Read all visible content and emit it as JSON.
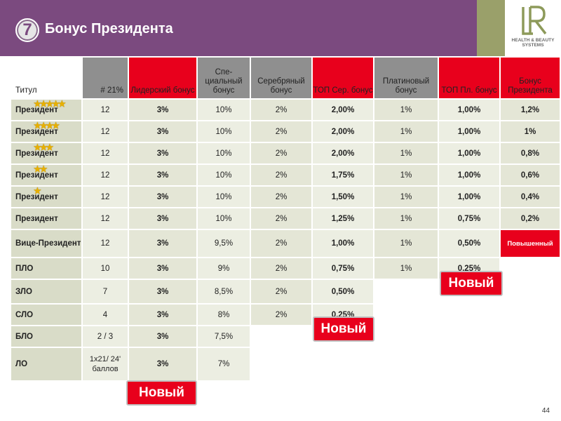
{
  "header": {
    "number": "7",
    "title": "Бонус Президента",
    "logo_letters": "LR",
    "logo_tagline_1": "HEALTH & BEAUTY",
    "logo_tagline_2": "SYSTEMS",
    "colors": {
      "header_bg": "#7b4a7f",
      "accent_red": "#e8001c",
      "header_gray": "#8f8f8f"
    }
  },
  "table": {
    "headers": [
      "Титул",
      "# 21%",
      "Лидерский бонус",
      "Спе-циальный бонус",
      "Серебряный бонус",
      "ТОП Сер. бонус",
      "Платиновый бонус",
      "ТОП Пл. бонус",
      "Бонус Президента"
    ],
    "rows": [
      {
        "title": "Президент",
        "stars": "★★★★★",
        "cells": [
          "12",
          "3%",
          "10%",
          "2%",
          "2,00%",
          "1%",
          "1,00%",
          "1,2%"
        ]
      },
      {
        "title": "Президент",
        "stars": "★★★★",
        "cells": [
          "12",
          "3%",
          "10%",
          "2%",
          "2,00%",
          "1%",
          "1,00%",
          "1%"
        ]
      },
      {
        "title": "Президент",
        "stars": "★★★",
        "cells": [
          "12",
          "3%",
          "10%",
          "2%",
          "2,00%",
          "1%",
          "1,00%",
          "0,8%"
        ]
      },
      {
        "title": "Президент",
        "stars": "★★",
        "cells": [
          "12",
          "3%",
          "10%",
          "2%",
          "1,75%",
          "1%",
          "1,00%",
          "0,6%"
        ]
      },
      {
        "title": "Президент",
        "stars": "★",
        "cells": [
          "12",
          "3%",
          "10%",
          "2%",
          "1,50%",
          "1%",
          "1,00%",
          "0,4%"
        ]
      },
      {
        "title": "Президент",
        "stars": "",
        "cells": [
          "12",
          "3%",
          "10%",
          "2%",
          "1,25%",
          "1%",
          "0,75%",
          "0,2%"
        ]
      },
      {
        "title": "Вице-Президент",
        "stars": "",
        "cells": [
          "12",
          "3%",
          "9,5%",
          "2%",
          "1,00%",
          "1%",
          "0,50%",
          "Повышенный"
        ]
      },
      {
        "title": "ПЛО",
        "stars": "",
        "cells": [
          "10",
          "3%",
          "9%",
          "2%",
          "0,75%",
          "1%",
          "0,25%",
          ""
        ]
      },
      {
        "title": "ЗЛО",
        "stars": "",
        "cells": [
          "7",
          "3%",
          "8,5%",
          "2%",
          "0,50%",
          "",
          "",
          ""
        ]
      },
      {
        "title": "СЛО",
        "stars": "",
        "cells": [
          "4",
          "3%",
          "8%",
          "2%",
          "0,25%",
          "",
          "",
          ""
        ]
      },
      {
        "title": "БЛО",
        "stars": "",
        "cells": [
          "2 / 3",
          "3%",
          "7,5%",
          "",
          "",
          "",
          "",
          ""
        ]
      },
      {
        "title": "ЛО",
        "stars": "",
        "cells": [
          "1x21/ 24' баллов",
          "3%",
          "7%",
          "",
          "",
          "",
          "",
          ""
        ]
      }
    ]
  },
  "badges": {
    "new_label": "Новый"
  },
  "page_number": "44"
}
